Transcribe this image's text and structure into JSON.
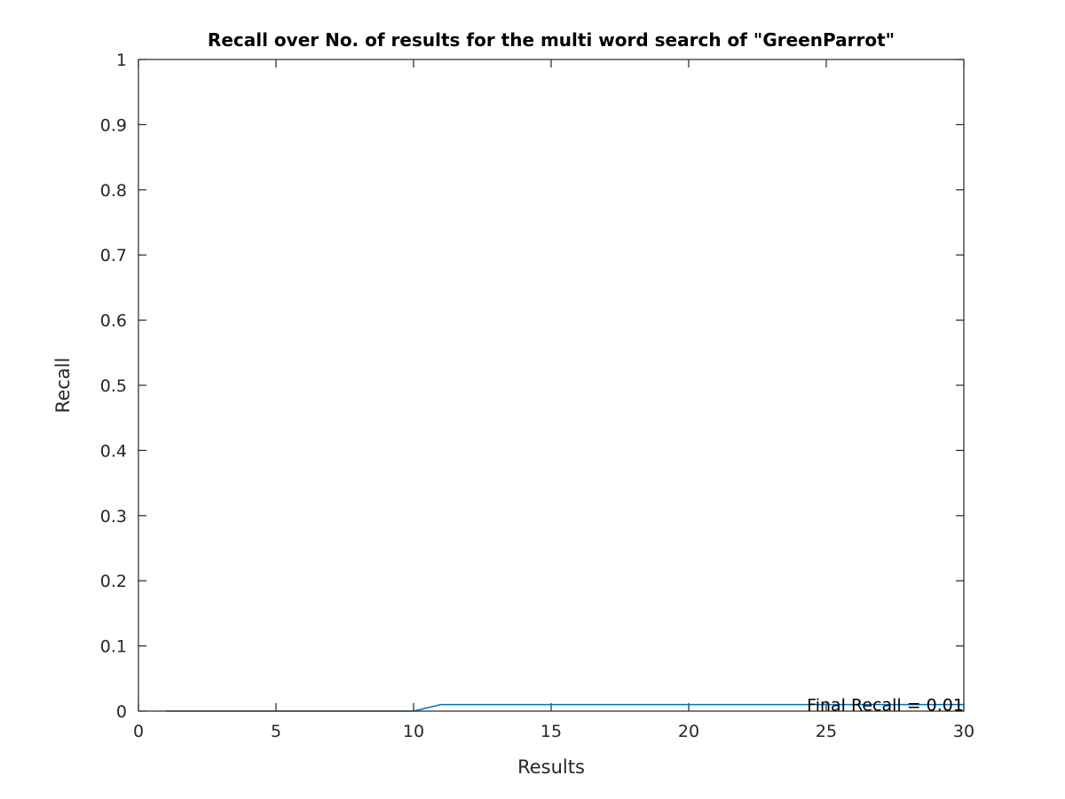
{
  "chart_data": {
    "type": "line",
    "title": "Recall over No. of results for the multi word search of \"GreenParrot\"",
    "xlabel": "Results",
    "ylabel": "Recall",
    "xlim": [
      0,
      30
    ],
    "ylim": [
      0,
      1
    ],
    "xticks": [
      0,
      5,
      10,
      15,
      20,
      25,
      30
    ],
    "yticks": [
      0,
      0.1,
      0.2,
      0.3,
      0.4,
      0.5,
      0.6,
      0.7,
      0.8,
      0.9,
      1
    ],
    "ytick_labels": [
      "0",
      "0.1",
      "0.2",
      "0.3",
      "0.4",
      "0.5",
      "0.6",
      "0.7",
      "0.8",
      "0.9",
      "1"
    ],
    "grid": false,
    "series": [
      {
        "color": "#0072BD",
        "x": [
          1,
          2,
          3,
          4,
          5,
          6,
          7,
          8,
          9,
          10,
          11,
          12,
          13,
          14,
          15,
          16,
          17,
          18,
          19,
          20,
          21,
          22,
          23,
          24,
          25,
          26,
          27,
          28,
          29,
          30
        ],
        "y": [
          0,
          0,
          0,
          0,
          0,
          0,
          0,
          0,
          0,
          0,
          0.01,
          0.01,
          0.01,
          0.01,
          0.01,
          0.01,
          0.01,
          0.01,
          0.01,
          0.01,
          0.01,
          0.01,
          0.01,
          0.01,
          0.01,
          0.01,
          0.01,
          0.01,
          0.01,
          0.01
        ]
      }
    ],
    "annotations": [
      {
        "text": "Final Recall = 0.01",
        "x": 30,
        "y": 0.01,
        "anchor": "end"
      }
    ]
  }
}
